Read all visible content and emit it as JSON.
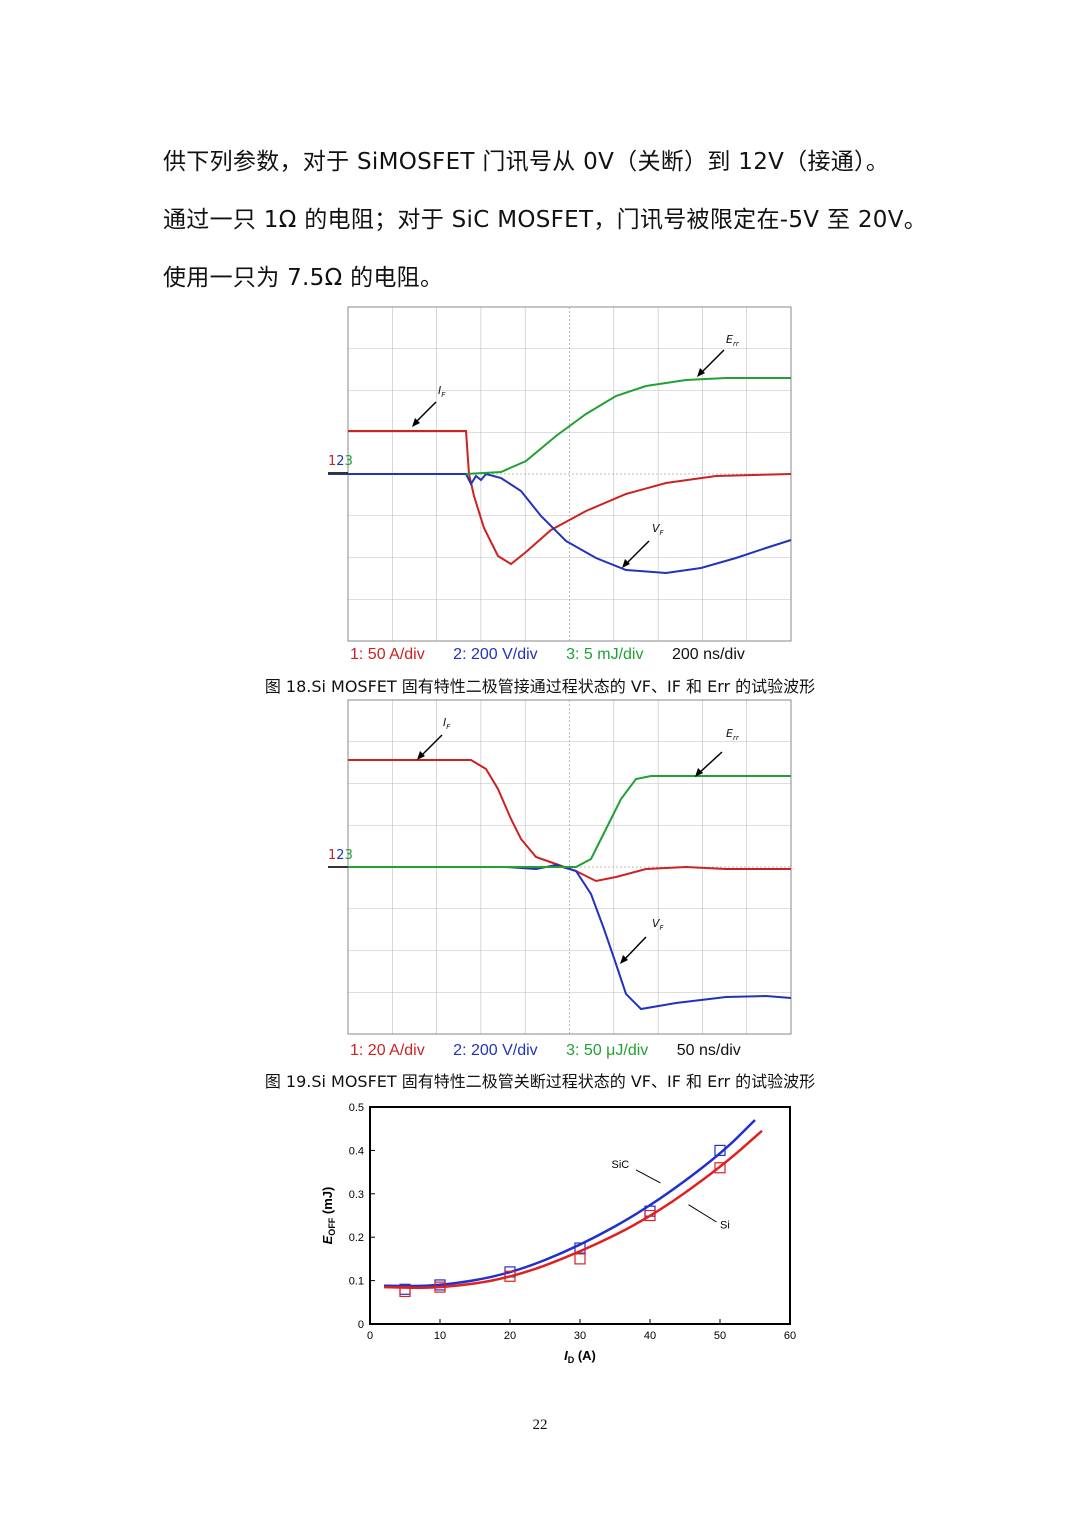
{
  "paragraphs": [
    "供下列参数，对于 SiMOSFET 门讯号从 0V（关断）到 12V（接通）。",
    "通过一只 1Ω 的电阻；对于 SiC MOSFET，门讯号被限定在-5V 至 20V。",
    "使用一只为 7.5Ω 的电阻。"
  ],
  "figure18": {
    "channel_marker": [
      "1",
      "2",
      "3"
    ],
    "labels": {
      "if": "I",
      "if_sub": "F",
      "vf": "V",
      "vf_sub": "F",
      "err": "E",
      "err_sub": "rr"
    },
    "legend": [
      "1: 50 A/div",
      "2: 200 V/div",
      "3: 5 mJ/div",
      "200 ns/div"
    ],
    "caption": "图 18.Si MOSFET 固有特性二极管接通过程状态的 VF、IF 和 Err 的试验波形"
  },
  "figure19": {
    "channel_marker": [
      "1",
      "2",
      "3"
    ],
    "labels": {
      "if": "I",
      "if_sub": "F",
      "vf": "V",
      "vf_sub": "F",
      "err": "E",
      "err_sub": "rr"
    },
    "legend": [
      "1: 20 A/div",
      "2: 200 V/div",
      "3: 50 μJ/div",
      "50 ns/div"
    ],
    "caption": "图 19.Si MOSFET 固有特性二极管关断过程状态的 VF、IF 和 Err 的试验波形"
  },
  "colors": {
    "ch1": "#cc2222",
    "ch2": "#2233bb",
    "ch3": "#22a033",
    "grid": "#bdbdbd"
  },
  "chart_data": {
    "type": "scatter",
    "xlabel": "I",
    "xlabel_sub": "D",
    "xlabel_unit": " (A)",
    "ylabel": "E",
    "ylabel_sub": "OFF",
    "ylabel_unit": " (mJ)",
    "xlim": [
      0,
      60
    ],
    "ylim": [
      0,
      0.5
    ],
    "xticks": [
      0,
      10,
      20,
      30,
      40,
      50,
      60
    ],
    "yticks": [
      0,
      0.1,
      0.2,
      0.3,
      0.4,
      0.5
    ],
    "series": [
      {
        "name": "SiC",
        "color": "#1f2fd0",
        "points": [
          [
            5,
            0.08
          ],
          [
            10,
            0.09
          ],
          [
            20,
            0.12
          ],
          [
            30,
            0.175
          ],
          [
            40,
            0.26
          ],
          [
            50,
            0.4
          ]
        ],
        "fit": [
          [
            2,
            0.088
          ],
          [
            10,
            0.087
          ],
          [
            20,
            0.115
          ],
          [
            30,
            0.18
          ],
          [
            40,
            0.27
          ],
          [
            50,
            0.39
          ],
          [
            55,
            0.47
          ]
        ]
      },
      {
        "name": "Si",
        "color": "#e02020",
        "points": [
          [
            5,
            0.075
          ],
          [
            10,
            0.085
          ],
          [
            20,
            0.11
          ],
          [
            30,
            0.15
          ],
          [
            40,
            0.25
          ],
          [
            50,
            0.36
          ]
        ],
        "fit": [
          [
            2,
            0.085
          ],
          [
            10,
            0.082
          ],
          [
            20,
            0.105
          ],
          [
            30,
            0.165
          ],
          [
            40,
            0.245
          ],
          [
            50,
            0.36
          ],
          [
            56,
            0.445
          ]
        ]
      }
    ],
    "annotations": [
      "SiC",
      "Si"
    ]
  },
  "page_number": "22"
}
